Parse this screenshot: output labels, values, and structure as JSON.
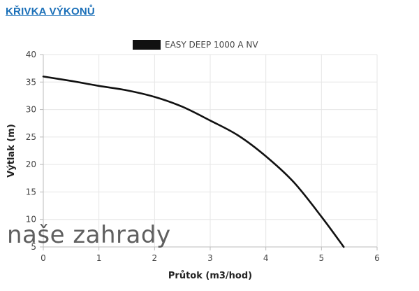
{
  "heading": {
    "text": "KŘIVKA VÝKONŮ",
    "color": "#1a6fb8"
  },
  "watermark": {
    "text": "naše zahrady"
  },
  "chart_data": {
    "type": "line",
    "xlabel": "Průtok (m3/hod)",
    "ylabel": "Výtlak (m)",
    "xlim": [
      0,
      6
    ],
    "ylim": [
      5,
      40
    ],
    "xticks": [
      0,
      1,
      2,
      3,
      4,
      5,
      6
    ],
    "yticks": [
      5,
      10,
      15,
      20,
      25,
      30,
      35,
      40
    ],
    "grid": true,
    "legend_position": "top-center",
    "series": [
      {
        "name": "EASY DEEP 1000 A NV",
        "color": "#111111",
        "x": [
          0,
          0.5,
          1.0,
          1.5,
          2.0,
          2.5,
          3.0,
          3.5,
          4.0,
          4.5,
          5.0,
          5.4
        ],
        "y": [
          36,
          35.2,
          34.3,
          33.5,
          32.3,
          30.5,
          28,
          25.3,
          21.5,
          16.8,
          10.5,
          5
        ]
      }
    ]
  }
}
